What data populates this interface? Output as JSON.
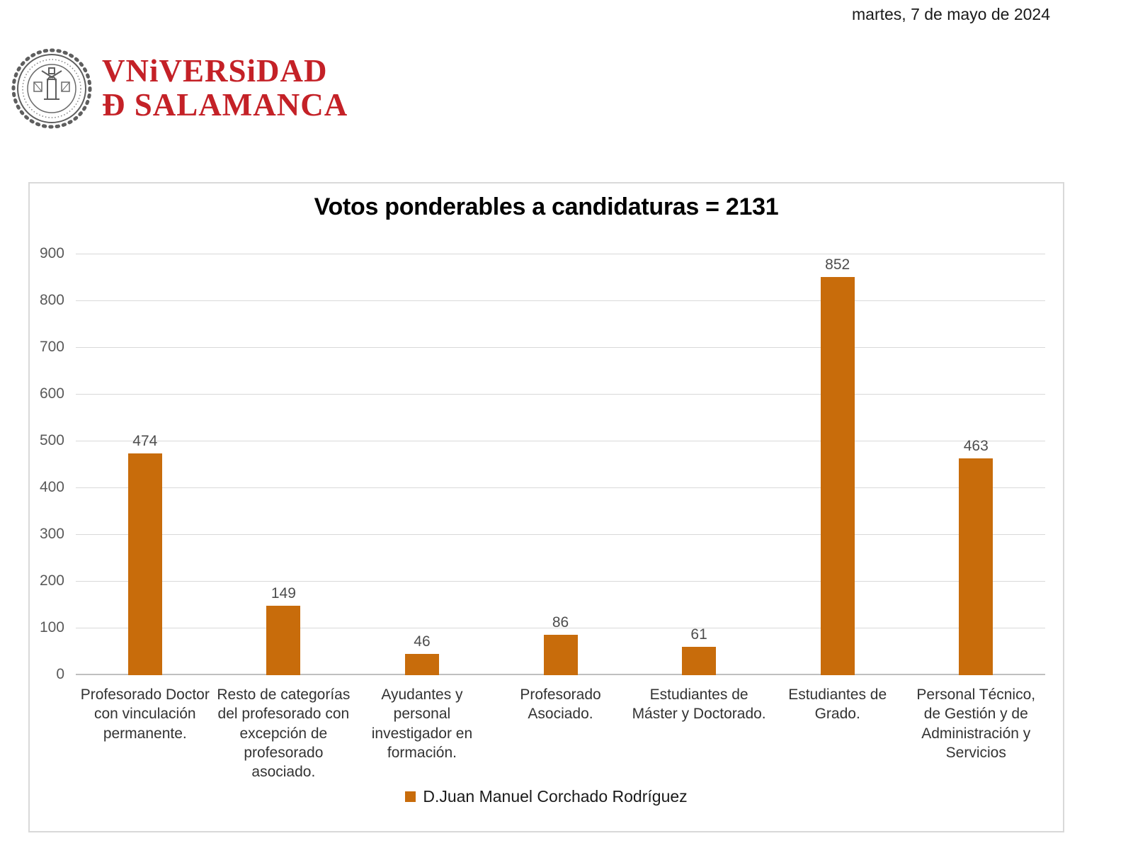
{
  "page": {
    "date": "martes, 7 de mayo de 2024"
  },
  "logo": {
    "line1": "VNiVERSiDAD",
    "line2": "Ð SALAMANCA",
    "brand_red": "#c42127",
    "seal": "universidad-de-salamanca-seal"
  },
  "chart_data": {
    "type": "bar",
    "title": "Votos ponderables a candidaturas = 2131",
    "categories": [
      "Profesorado Doctor con vinculación permanente.",
      "Resto de categorías del profesorado con excepción de profesorado asociado.",
      "Ayudantes y personal investigador en formación.",
      "Profesorado Asociado.",
      "Estudiantes de Máster y Doctorado.",
      "Estudiantes de Grado.",
      "Personal Técnico, de Gestión y de Administración y Servicios"
    ],
    "values": [
      474,
      149,
      46,
      86,
      61,
      852,
      463
    ],
    "series_name": "D.Juan Manuel Corchado Rodríguez",
    "bar_color": "#c86c0b",
    "ylim": [
      0,
      900
    ],
    "yticks": [
      0,
      100,
      200,
      300,
      400,
      500,
      600,
      700,
      800,
      900
    ],
    "grid": true,
    "gridline_color": "#d9d9d9",
    "legend_position": "bottom"
  }
}
